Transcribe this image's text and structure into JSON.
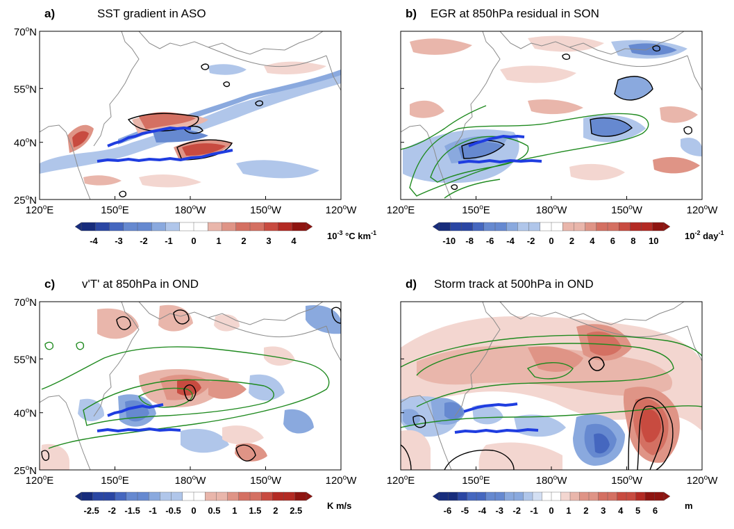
{
  "figure": {
    "panels": [
      {
        "id": "a",
        "tag": "a)",
        "title": "SST gradient in ASO",
        "x_ticks": [
          {
            "main": "120",
            "sup": "o",
            "dir": "E"
          },
          {
            "main": "150",
            "sup": "o",
            "dir": "E"
          },
          {
            "main": "180",
            "sup": "o",
            "dir": "W"
          },
          {
            "main": "150",
            "sup": "o",
            "dir": "W"
          },
          {
            "main": "120",
            "sup": "o",
            "dir": "W"
          }
        ],
        "y_ticks": [
          {
            "main": "70",
            "sup": "o",
            "dir": "N"
          },
          {
            "main": "55",
            "sup": "o",
            "dir": "N"
          },
          {
            "main": "40",
            "sup": "o",
            "dir": "N"
          },
          {
            "main": "25",
            "sup": "o",
            "dir": "N"
          }
        ],
        "colorbar": {
          "labels": [
            "-4",
            "-3",
            "-2",
            "-1",
            "0",
            "1",
            "2",
            "3",
            "4"
          ],
          "unit_main": "10",
          "unit_sup": "-3",
          "unit_rest": " °C km",
          "unit_sup2": "-1"
        }
      },
      {
        "id": "b",
        "tag": "b)",
        "title": "EGR at 850hPa residual in SON",
        "x_ticks": [
          {
            "main": "120",
            "sup": "o",
            "dir": "E"
          },
          {
            "main": "150",
            "sup": "o",
            "dir": "E"
          },
          {
            "main": "180",
            "sup": "o",
            "dir": "W"
          },
          {
            "main": "150",
            "sup": "o",
            "dir": "W"
          },
          {
            "main": "120",
            "sup": "o",
            "dir": "W"
          }
        ],
        "y_ticks": [],
        "colorbar": {
          "labels": [
            "-10",
            "-8",
            "-6",
            "-4",
            "-2",
            "0",
            "2",
            "4",
            "6",
            "8",
            "10"
          ],
          "unit_main": "10",
          "unit_sup": "-2",
          "unit_rest": " day",
          "unit_sup2": "-1"
        }
      },
      {
        "id": "c",
        "tag": "c)",
        "title": "v'T' at 850hPa in OND",
        "x_ticks": [
          {
            "main": "120",
            "sup": "o",
            "dir": "E"
          },
          {
            "main": "150",
            "sup": "o",
            "dir": "E"
          },
          {
            "main": "180",
            "sup": "o",
            "dir": "W"
          },
          {
            "main": "150",
            "sup": "o",
            "dir": "W"
          },
          {
            "main": "120",
            "sup": "o",
            "dir": "W"
          }
        ],
        "y_ticks": [
          {
            "main": "70",
            "sup": "o",
            "dir": "N"
          },
          {
            "main": "55",
            "sup": "o",
            "dir": "N"
          },
          {
            "main": "40",
            "sup": "o",
            "dir": "N"
          },
          {
            "main": "25",
            "sup": "o",
            "dir": "N"
          }
        ],
        "colorbar": {
          "labels": [
            "-2.5",
            "-2",
            "-1.5",
            "-1",
            "-0.5",
            "0",
            "0.5",
            "1",
            "1.5",
            "2",
            "2.5"
          ],
          "unit_main": "K m/s",
          "unit_sup": "",
          "unit_rest": "",
          "unit_sup2": ""
        }
      },
      {
        "id": "d",
        "tag": "d)",
        "title": "Storm track at 500hPa in OND",
        "x_ticks": [
          {
            "main": "120",
            "sup": "o",
            "dir": "E"
          },
          {
            "main": "150",
            "sup": "o",
            "dir": "E"
          },
          {
            "main": "180",
            "sup": "o",
            "dir": "W"
          },
          {
            "main": "150",
            "sup": "o",
            "dir": "W"
          },
          {
            "main": "120",
            "sup": "o",
            "dir": "W"
          }
        ],
        "y_ticks": [],
        "colorbar": {
          "labels": [
            "-6",
            "-5",
            "-4",
            "-3",
            "-2",
            "-1",
            "0",
            "1",
            "2",
            "3",
            "4",
            "5",
            "6"
          ],
          "unit_main": "m",
          "unit_sup": "",
          "unit_rest": "",
          "unit_sup2": ""
        }
      }
    ],
    "colors": {
      "positive": [
        "#f3d6d0",
        "#e9b6ab",
        "#df9486",
        "#d47062",
        "#c84b40",
        "#b32a23",
        "#8e1410"
      ],
      "negative": [
        "#d3dff3",
        "#b0c6ea",
        "#8aa9de",
        "#6689d0",
        "#4567bf",
        "#2a46a3",
        "#172c7c"
      ],
      "front_line": "#1f3de0",
      "climatology_contour": "#1f8a1f",
      "significance_contour": "#000000",
      "coastline": "#8a8a8a"
    }
  }
}
